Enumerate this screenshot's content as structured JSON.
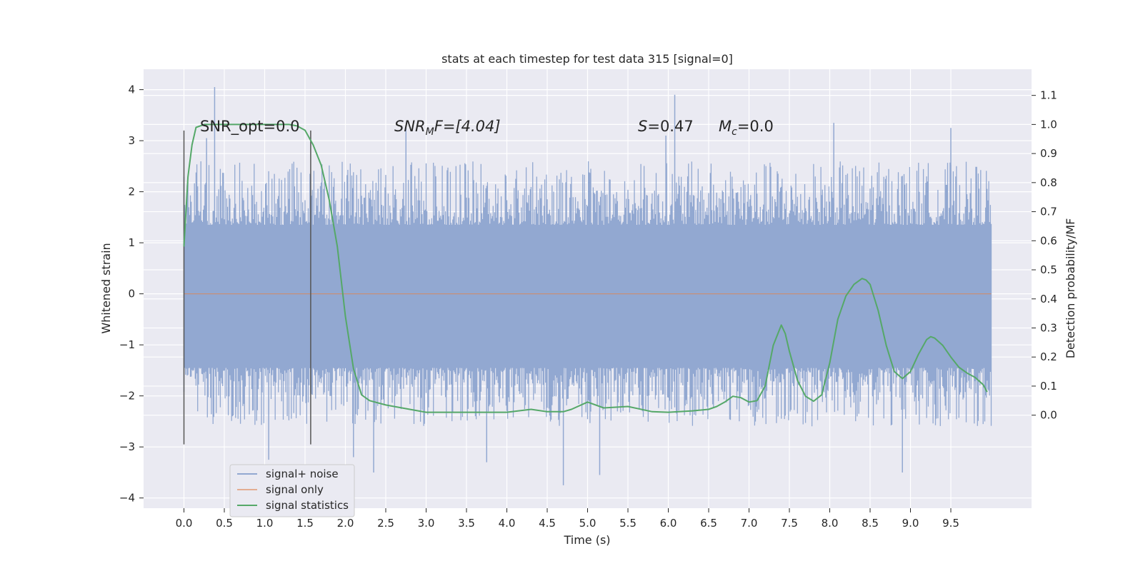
{
  "chart_data": {
    "type": "line",
    "title": "stats at each timestep for test data 315 [signal=0]",
    "xlabel": "Time (s)",
    "ylabel_left": "Whitened strain",
    "ylabel_right": "Detection probability/MF",
    "xlim": [
      -0.5,
      10.5
    ],
    "ylim_left": [
      -4.2,
      4.4
    ],
    "ylim_right": [
      -0.32,
      1.19
    ],
    "x_ticks": [
      "0.0",
      "0.5",
      "1.0",
      "1.5",
      "2.0",
      "2.5",
      "3.0",
      "3.5",
      "4.0",
      "4.5",
      "5.0",
      "5.5",
      "6.0",
      "6.5",
      "7.0",
      "7.5",
      "8.0",
      "8.5",
      "9.0",
      "9.5"
    ],
    "y_ticks_left": [
      "4",
      "3",
      "2",
      "1",
      "0",
      "−1",
      "−2",
      "−3",
      "−4"
    ],
    "y_ticks_right": [
      "1.1",
      "1.0",
      "0.9",
      "0.8",
      "0.7",
      "0.6",
      "0.5",
      "0.4",
      "0.3",
      "0.2",
      "0.1",
      "0.0"
    ],
    "grid": true,
    "legend_position": "lower-left",
    "annotations": {
      "snr_opt": "SNR_opt=0.0",
      "snr_mf_base": "SNR",
      "snr_mf_sub": "M",
      "snr_mf_tail": "F=[4.04]",
      "s_var": "S",
      "s_val": "=0.47",
      "mc_var": "M",
      "mc_sub": "c",
      "mc_val": "=0.0"
    },
    "window_markers": {
      "x": [
        0.0,
        1.57
      ],
      "y_range": [
        -2.95,
        3.2
      ]
    },
    "series": [
      {
        "name": "signal+ noise",
        "axis": "left",
        "style": "dense noisy band",
        "x_range": [
          0.0,
          10.0
        ],
        "band": [
          -1.45,
          1.35
        ],
        "typical_peak_range": [
          -2.6,
          2.6
        ],
        "spikes": [
          {
            "x": 0.38,
            "y": 4.05
          },
          {
            "x": 0.28,
            "y": 3.05
          },
          {
            "x": 1.05,
            "y": -3.25
          },
          {
            "x": 2.1,
            "y": -3.2
          },
          {
            "x": 2.35,
            "y": -3.5
          },
          {
            "x": 2.75,
            "y": 3.3
          },
          {
            "x": 3.75,
            "y": -3.3
          },
          {
            "x": 4.7,
            "y": -3.75
          },
          {
            "x": 5.15,
            "y": -3.55
          },
          {
            "x": 6.08,
            "y": 3.9
          },
          {
            "x": 5.97,
            "y": 3.1
          },
          {
            "x": 8.05,
            "y": 3.35
          },
          {
            "x": 8.9,
            "y": -3.5
          },
          {
            "x": 9.5,
            "y": 3.25
          }
        ]
      },
      {
        "name": "signal only",
        "axis": "left",
        "x": [
          0.0,
          10.0
        ],
        "y": [
          0.0,
          0.0
        ]
      },
      {
        "name": "signal statistics",
        "axis": "right",
        "x": [
          0.0,
          0.05,
          0.1,
          0.15,
          0.25,
          0.5,
          1.0,
          1.3,
          1.4,
          1.5,
          1.6,
          1.7,
          1.8,
          1.9,
          2.0,
          2.1,
          2.2,
          2.3,
          2.5,
          2.7,
          3.0,
          3.5,
          4.0,
          4.3,
          4.5,
          4.7,
          4.8,
          5.0,
          5.2,
          5.5,
          5.8,
          6.0,
          6.3,
          6.5,
          6.6,
          6.7,
          6.8,
          6.9,
          7.0,
          7.1,
          7.2,
          7.3,
          7.4,
          7.45,
          7.5,
          7.6,
          7.7,
          7.8,
          7.9,
          8.0,
          8.1,
          8.2,
          8.3,
          8.4,
          8.45,
          8.5,
          8.6,
          8.7,
          8.8,
          8.9,
          9.0,
          9.1,
          9.2,
          9.25,
          9.3,
          9.4,
          9.5,
          9.6,
          9.7,
          9.8,
          9.9,
          9.95
        ],
        "y": [
          0.58,
          0.82,
          0.93,
          0.99,
          1.0,
          1.0,
          1.0,
          1.0,
          0.995,
          0.98,
          0.93,
          0.86,
          0.74,
          0.58,
          0.34,
          0.16,
          0.07,
          0.05,
          0.035,
          0.025,
          0.01,
          0.01,
          0.01,
          0.02,
          0.012,
          0.012,
          0.02,
          0.045,
          0.025,
          0.03,
          0.012,
          0.01,
          0.015,
          0.02,
          0.03,
          0.045,
          0.065,
          0.06,
          0.045,
          0.05,
          0.1,
          0.24,
          0.31,
          0.28,
          0.22,
          0.12,
          0.065,
          0.048,
          0.07,
          0.18,
          0.33,
          0.41,
          0.45,
          0.47,
          0.465,
          0.45,
          0.36,
          0.24,
          0.15,
          0.126,
          0.15,
          0.21,
          0.26,
          0.27,
          0.265,
          0.24,
          0.2,
          0.165,
          0.145,
          0.13,
          0.105,
          0.08
        ]
      }
    ],
    "colors": {
      "signal_noise": "#92a8d1",
      "signal_only": "#dd8452",
      "signal_statistics": "#55a868",
      "background": "#eaeaf2",
      "grid": "#ffffff",
      "marker": "#555555"
    }
  }
}
